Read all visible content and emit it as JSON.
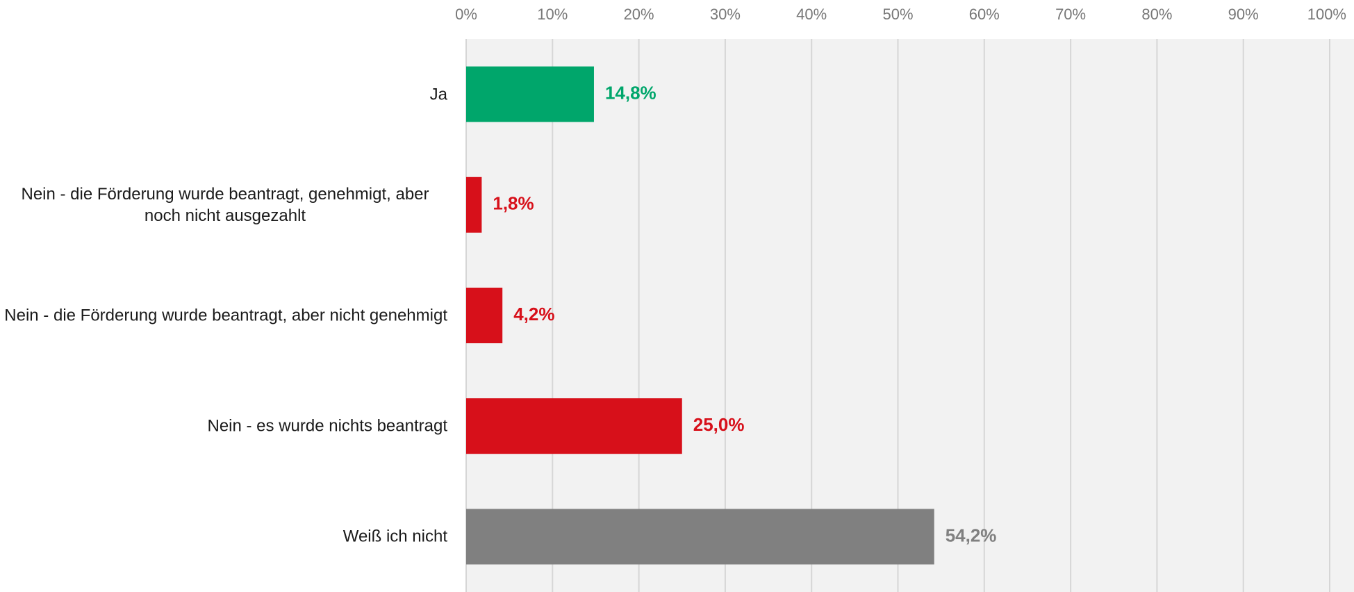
{
  "chart_data": {
    "type": "bar",
    "orientation": "horizontal",
    "categories": [
      "Ja",
      "Nein - die Förderung wurde beantragt, genehmigt, aber noch nicht ausgezahlt",
      "Nein - die Förderung wurde beantragt, aber nicht genehmigt",
      "Nein - es wurde nichts beantragt",
      "Weiß ich nicht"
    ],
    "values": [
      14.8,
      1.8,
      4.2,
      25.0,
      54.2
    ],
    "value_labels": [
      "14,8%",
      "1,8%",
      "4,2%",
      "25,0%",
      "54,2%"
    ],
    "colors": [
      "#00a66b",
      "#d7101a",
      "#d7101a",
      "#d7101a",
      "#808080"
    ],
    "xlim": [
      0,
      100
    ],
    "xticks": [
      {
        "value": 0,
        "label": "0%"
      },
      {
        "value": 10,
        "label": "10%"
      },
      {
        "value": 20,
        "label": "20%"
      },
      {
        "value": 30,
        "label": "30%"
      },
      {
        "value": 40,
        "label": "40%"
      },
      {
        "value": 50,
        "label": "50%"
      },
      {
        "value": 60,
        "label": "60%"
      },
      {
        "value": 70,
        "label": "70%"
      },
      {
        "value": 80,
        "label": "80%"
      },
      {
        "value": 90,
        "label": "90%"
      },
      {
        "value": 100,
        "label": "100%"
      }
    ],
    "grid": true
  }
}
